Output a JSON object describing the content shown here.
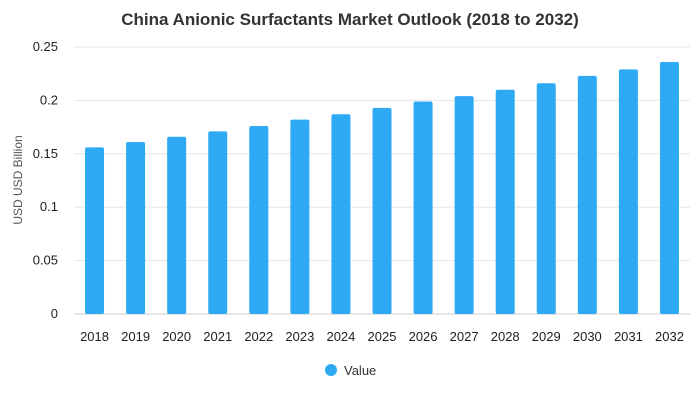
{
  "chart_data": {
    "type": "bar",
    "title": "China Anionic Surfactants Market Outlook (2018 to 2032)",
    "xlabel": "",
    "ylabel": "USD USD Billion",
    "categories": [
      "2018",
      "2019",
      "2020",
      "2021",
      "2022",
      "2023",
      "2024",
      "2025",
      "2026",
      "2027",
      "2028",
      "2029",
      "2030",
      "2031",
      "2032"
    ],
    "series": [
      {
        "name": "Value",
        "color": "#2eaaf5",
        "values": [
          0.156,
          0.161,
          0.166,
          0.171,
          0.176,
          0.182,
          0.187,
          0.193,
          0.199,
          0.204,
          0.21,
          0.216,
          0.223,
          0.229,
          0.236
        ]
      }
    ],
    "ylim": [
      0,
      0.25
    ],
    "yticks": [
      "0",
      "0.05",
      "0.1",
      "0.15",
      "0.2",
      "0.25"
    ],
    "grid": true,
    "legend_position": "bottom-center"
  }
}
